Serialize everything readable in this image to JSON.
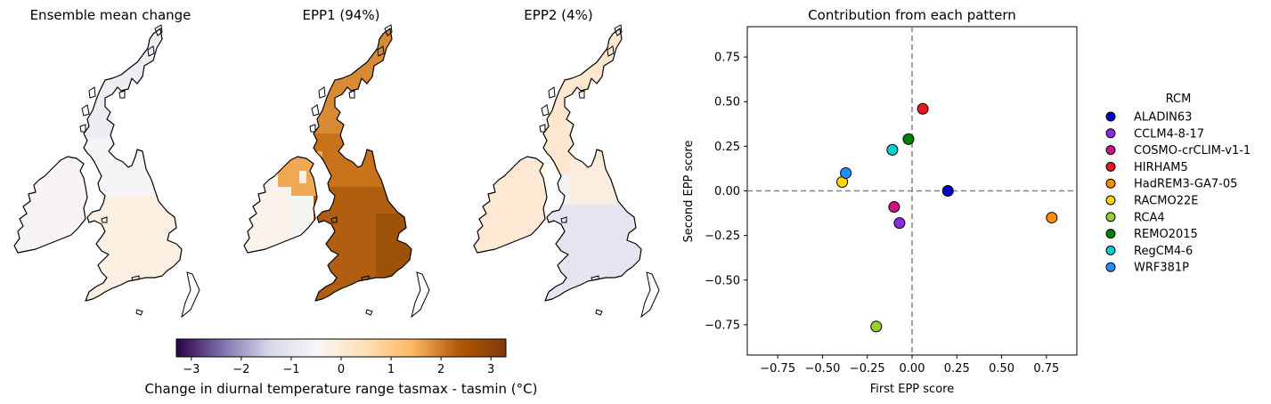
{
  "chart_data": [
    {
      "type": "heatmap",
      "subtype": "map",
      "title": "Ensemble mean change",
      "region": "UK and Ireland",
      "pattern": "near-neutral; very slight positive (light orange) over southern England, very slight negative (light lavender) over Scotland"
    },
    {
      "type": "heatmap",
      "subtype": "map",
      "title": "EPP1 (94%)",
      "region": "UK and Ireland",
      "pattern": "strong positive (dark orange, about 2-3 °C) over England and Wales, moderate positive over Scotland, weaker positive over Northern Ireland, near zero over Republic of Ireland"
    },
    {
      "type": "heatmap",
      "subtype": "map",
      "title": "EPP2 (4%)",
      "region": "UK and Ireland",
      "pattern": "slight positive (light orange) over northern England, Scotland and Northern Ireland, slight negative (light lavender) over southern England and Wales"
    },
    {
      "type": "colorbar",
      "label": "Change in diurnal temperature range tasmax - tasmin (°C)",
      "range": [
        -3.3,
        3.3
      ],
      "ticks": [
        "−3",
        "−2",
        "−1",
        "0",
        "1",
        "2",
        "3"
      ],
      "tick_values": [
        -3,
        -2,
        -1,
        0,
        1,
        2,
        3
      ],
      "colormap": "diverging purple-white-orange (PuOr reversed)",
      "colors": [
        "#2d004b",
        "#8073ac",
        "#d8daeb",
        "#f7f7f7",
        "#fee0b6",
        "#fdb863",
        "#b35806",
        "#7f3b08"
      ]
    },
    {
      "type": "scatter",
      "title": "Contribution from each pattern",
      "xlabel": "First EPP score",
      "ylabel": "Second EPP score",
      "xlim": [
        -0.92,
        0.92
      ],
      "ylim": [
        -0.92,
        0.92
      ],
      "xticks": [
        "−0.75",
        "−0.50",
        "−0.25",
        "0.00",
        "0.25",
        "0.50",
        "0.75"
      ],
      "xtick_values": [
        -0.75,
        -0.5,
        -0.25,
        0,
        0.25,
        0.5,
        0.75
      ],
      "yticks": [
        "0.75",
        "0.50",
        "0.25",
        "0.00",
        "−0.25",
        "−0.50",
        "−0.75"
      ],
      "ytick_values": [
        0.75,
        0.5,
        0.25,
        0,
        -0.25,
        -0.5,
        -0.75
      ],
      "reference_lines": "dashed grey lines at x = 0 and y = 0",
      "legend_title": "RCM",
      "legend_position": "right, outside plot",
      "series": [
        {
          "name": "ALADIN63",
          "color": "#0000cd",
          "x": 0.2,
          "y": 0.0
        },
        {
          "name": "CCLM4-8-17",
          "color": "#8a2be2",
          "x": -0.07,
          "y": -0.18
        },
        {
          "name": "COSMO-crCLIM-v1-1",
          "color": "#c71585",
          "x": -0.1,
          "y": -0.09
        },
        {
          "name": "HIRHAM5",
          "color": "#e41a1c",
          "x": 0.06,
          "y": 0.46
        },
        {
          "name": "HadREM3-GA7-05",
          "color": "#ff8c00",
          "x": 0.78,
          "y": -0.15
        },
        {
          "name": "RACMO22E",
          "color": "#ffd700",
          "x": -0.39,
          "y": 0.05
        },
        {
          "name": "RCA4",
          "color": "#9acd32",
          "x": -0.2,
          "y": -0.76
        },
        {
          "name": "REMO2015",
          "color": "#008000",
          "x": -0.02,
          "y": 0.29
        },
        {
          "name": "RegCM4-6",
          "color": "#00ced1",
          "x": -0.11,
          "y": 0.23
        },
        {
          "name": "WRF381P",
          "color": "#1e90ff",
          "x": -0.37,
          "y": 0.1
        }
      ]
    }
  ]
}
